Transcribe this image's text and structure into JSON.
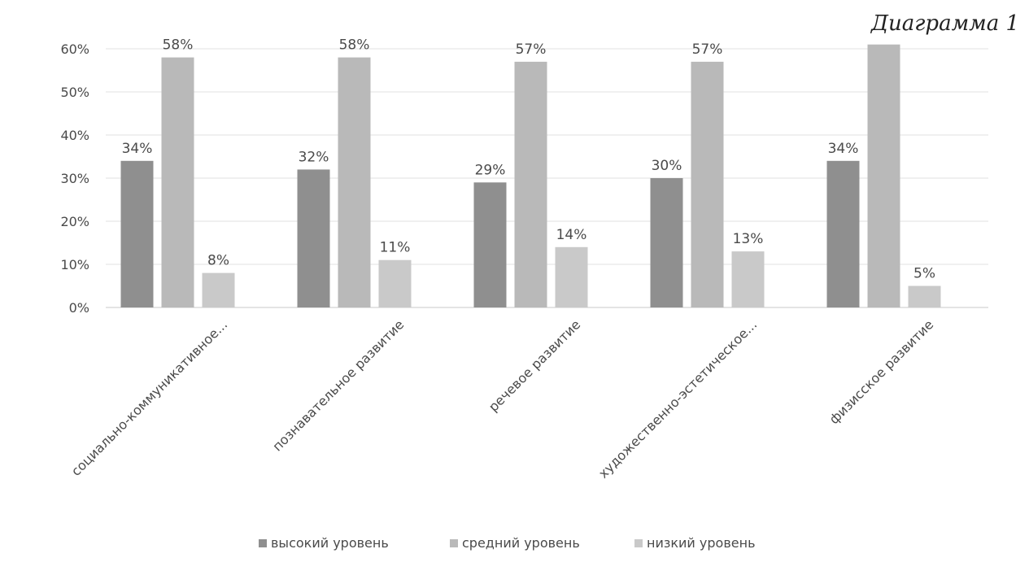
{
  "chart_data": {
    "type": "bar",
    "title": "Диаграмма 1",
    "categories": [
      "социально-коммуникативное...",
      "познавательное развитие",
      "речевое развитие",
      "художественно-эстетическое...",
      "физисское развитие"
    ],
    "series": [
      {
        "name": "высокий уровень",
        "values": [
          34,
          32,
          29,
          30,
          34
        ],
        "labels": [
          "34%",
          "32%",
          "29%",
          "30%",
          "34%"
        ]
      },
      {
        "name": "средний уровень",
        "values": [
          58,
          58,
          57,
          57,
          61
        ],
        "labels": [
          "58%",
          "58%",
          "57%",
          "57%",
          ""
        ]
      },
      {
        "name": "низкий уровень",
        "values": [
          8,
          11,
          14,
          13,
          5
        ],
        "labels": [
          "8%",
          "11%",
          "14%",
          "13%",
          "5%"
        ]
      }
    ],
    "yticks": [
      "0%",
      "10%",
      "20%",
      "30%",
      "40%",
      "50%",
      "60%"
    ],
    "ylim": [
      0,
      60
    ],
    "grid": true,
    "legend_position": "bottom",
    "colors": {
      "series": [
        "#8f8f8f",
        "#b9b9b9",
        "#c9c9c9"
      ],
      "text": "#4a4a4a",
      "grid": "#e2e2e2",
      "axis": "#c9c9c9"
    }
  }
}
